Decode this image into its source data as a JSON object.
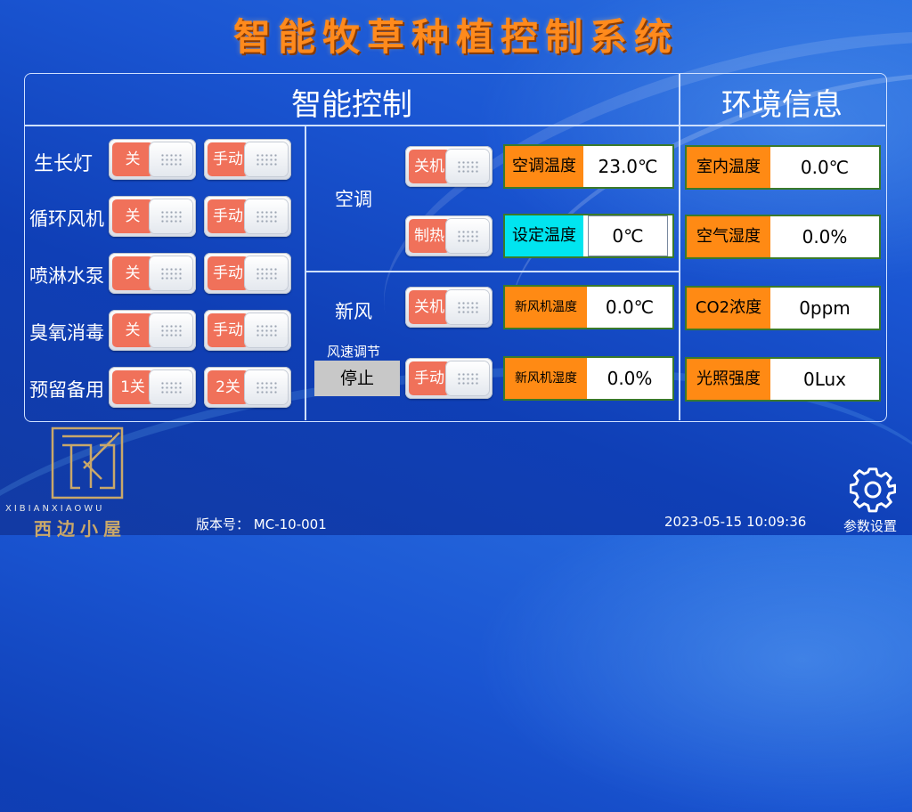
{
  "app_title": "智能牧草种植控制系统",
  "sections": {
    "control": "智能控制",
    "env": "环境信息"
  },
  "rows": [
    {
      "label": "生长灯",
      "state": "关",
      "mode": "手动"
    },
    {
      "label": "循环风机",
      "state": "关",
      "mode": "手动"
    },
    {
      "label": "喷淋水泵",
      "state": "关",
      "mode": "手动"
    },
    {
      "label": "臭氧消毒",
      "state": "关",
      "mode": "手动"
    },
    {
      "label": "预留备用",
      "state": "1关",
      "mode": "2关"
    }
  ],
  "ac": {
    "label": "空调",
    "power": "关机",
    "mode": "制热",
    "temp_label": "空调温度",
    "temp_value": "23.0℃",
    "set_label": "设定温度",
    "set_value": "0℃"
  },
  "fresh_air": {
    "label": "新风",
    "power": "关机",
    "mode": "手动",
    "speed_label": "风速调节",
    "speed_button": "停止",
    "temp_label": "新风机温度",
    "temp_value": "0.0℃",
    "hum_label": "新风机湿度",
    "hum_value": "0.0%"
  },
  "env": [
    {
      "label": "室内温度",
      "value": "0.0℃"
    },
    {
      "label": "空气湿度",
      "value": "0.0%"
    },
    {
      "label": "CO2浓度",
      "value": "0ppm"
    },
    {
      "label": "光照强度",
      "value": "0Lux"
    }
  ],
  "logo": {
    "brand": "西边小屋",
    "pinyin": "XIBIANXIAOWU"
  },
  "footer": {
    "version_label": "版本号：",
    "version": "MC-10-001",
    "datetime": "2023-05-15 10:09:36",
    "settings": "参数设置"
  },
  "icons": {
    "settings": "gear-icon",
    "logo": "logo-icon"
  },
  "colors": {
    "title": "#ff8a1c",
    "display_key": "#ff8a14",
    "display_key_alt": "#00e5f0",
    "toggle_label": "#f0715a"
  }
}
